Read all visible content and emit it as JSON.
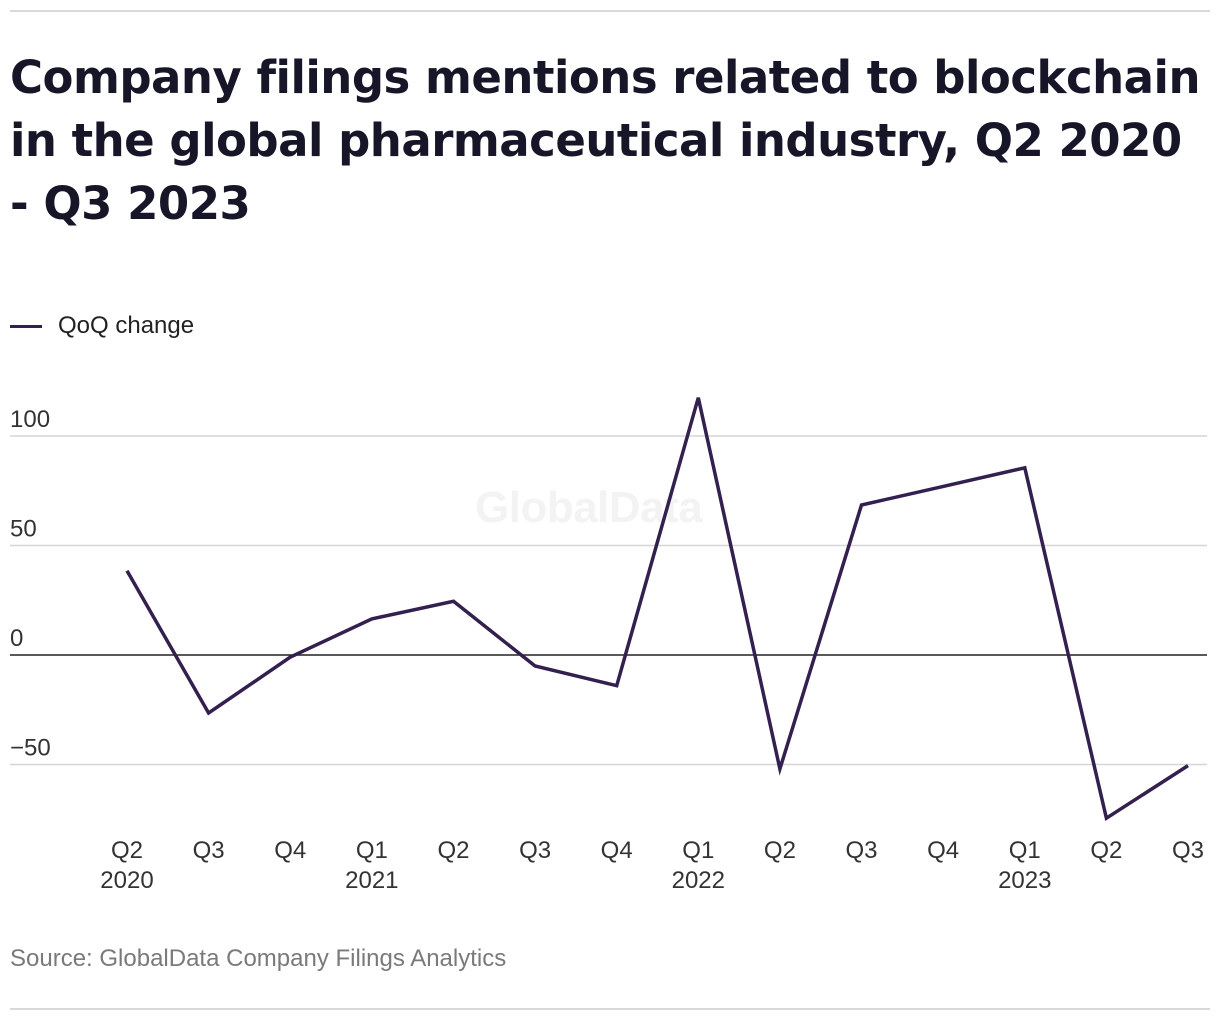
{
  "header": {
    "title": "Company filings mentions related to blockchain in the global pharmaceutical industry, Q2 2020 - Q3 2023"
  },
  "legend": {
    "label": "QoQ change",
    "color": "#34204f"
  },
  "watermark": "GlobalData",
  "footer": {
    "source": "Source: GlobalData Company Filings Analytics"
  },
  "chart_data": {
    "type": "line",
    "title": "Company filings mentions related to blockchain in the global pharmaceutical industry, Q2 2020 - Q3 2023",
    "xlabel": "",
    "ylabel": "",
    "categories": [
      "Q2 2020",
      "Q3 2020",
      "Q4 2020",
      "Q1 2021",
      "Q2 2021",
      "Q3 2021",
      "Q4 2021",
      "Q1 2022",
      "Q2 2022",
      "Q3 2022",
      "Q4 2022",
      "Q1 2023",
      "Q2 2023",
      "Q3 2023"
    ],
    "tick_labels": [
      [
        "Q2",
        "2020"
      ],
      [
        "Q3",
        ""
      ],
      [
        "Q4",
        ""
      ],
      [
        "Q1",
        "2021"
      ],
      [
        "Q2",
        ""
      ],
      [
        "Q3",
        ""
      ],
      [
        "Q4",
        ""
      ],
      [
        "Q1",
        "2022"
      ],
      [
        "Q2",
        ""
      ],
      [
        "Q3",
        ""
      ],
      [
        "Q4",
        ""
      ],
      [
        "Q1",
        "2023"
      ],
      [
        "Q2",
        ""
      ],
      [
        "Q3",
        ""
      ]
    ],
    "series": [
      {
        "name": "QoQ change",
        "color": "#34204f",
        "values": [
          38.5,
          -26.5,
          -1,
          16.5,
          24.5,
          -5,
          -14,
          117.5,
          -52,
          68.5,
          77,
          85.5,
          -74.5,
          -50.5
        ]
      }
    ],
    "ylim": [
      -80,
      125
    ],
    "yticks": [
      100,
      50,
      0,
      -50
    ],
    "ytick_labels": [
      "100",
      "50",
      "0",
      "−50"
    ],
    "grid": true,
    "legend_position": "top-left"
  }
}
